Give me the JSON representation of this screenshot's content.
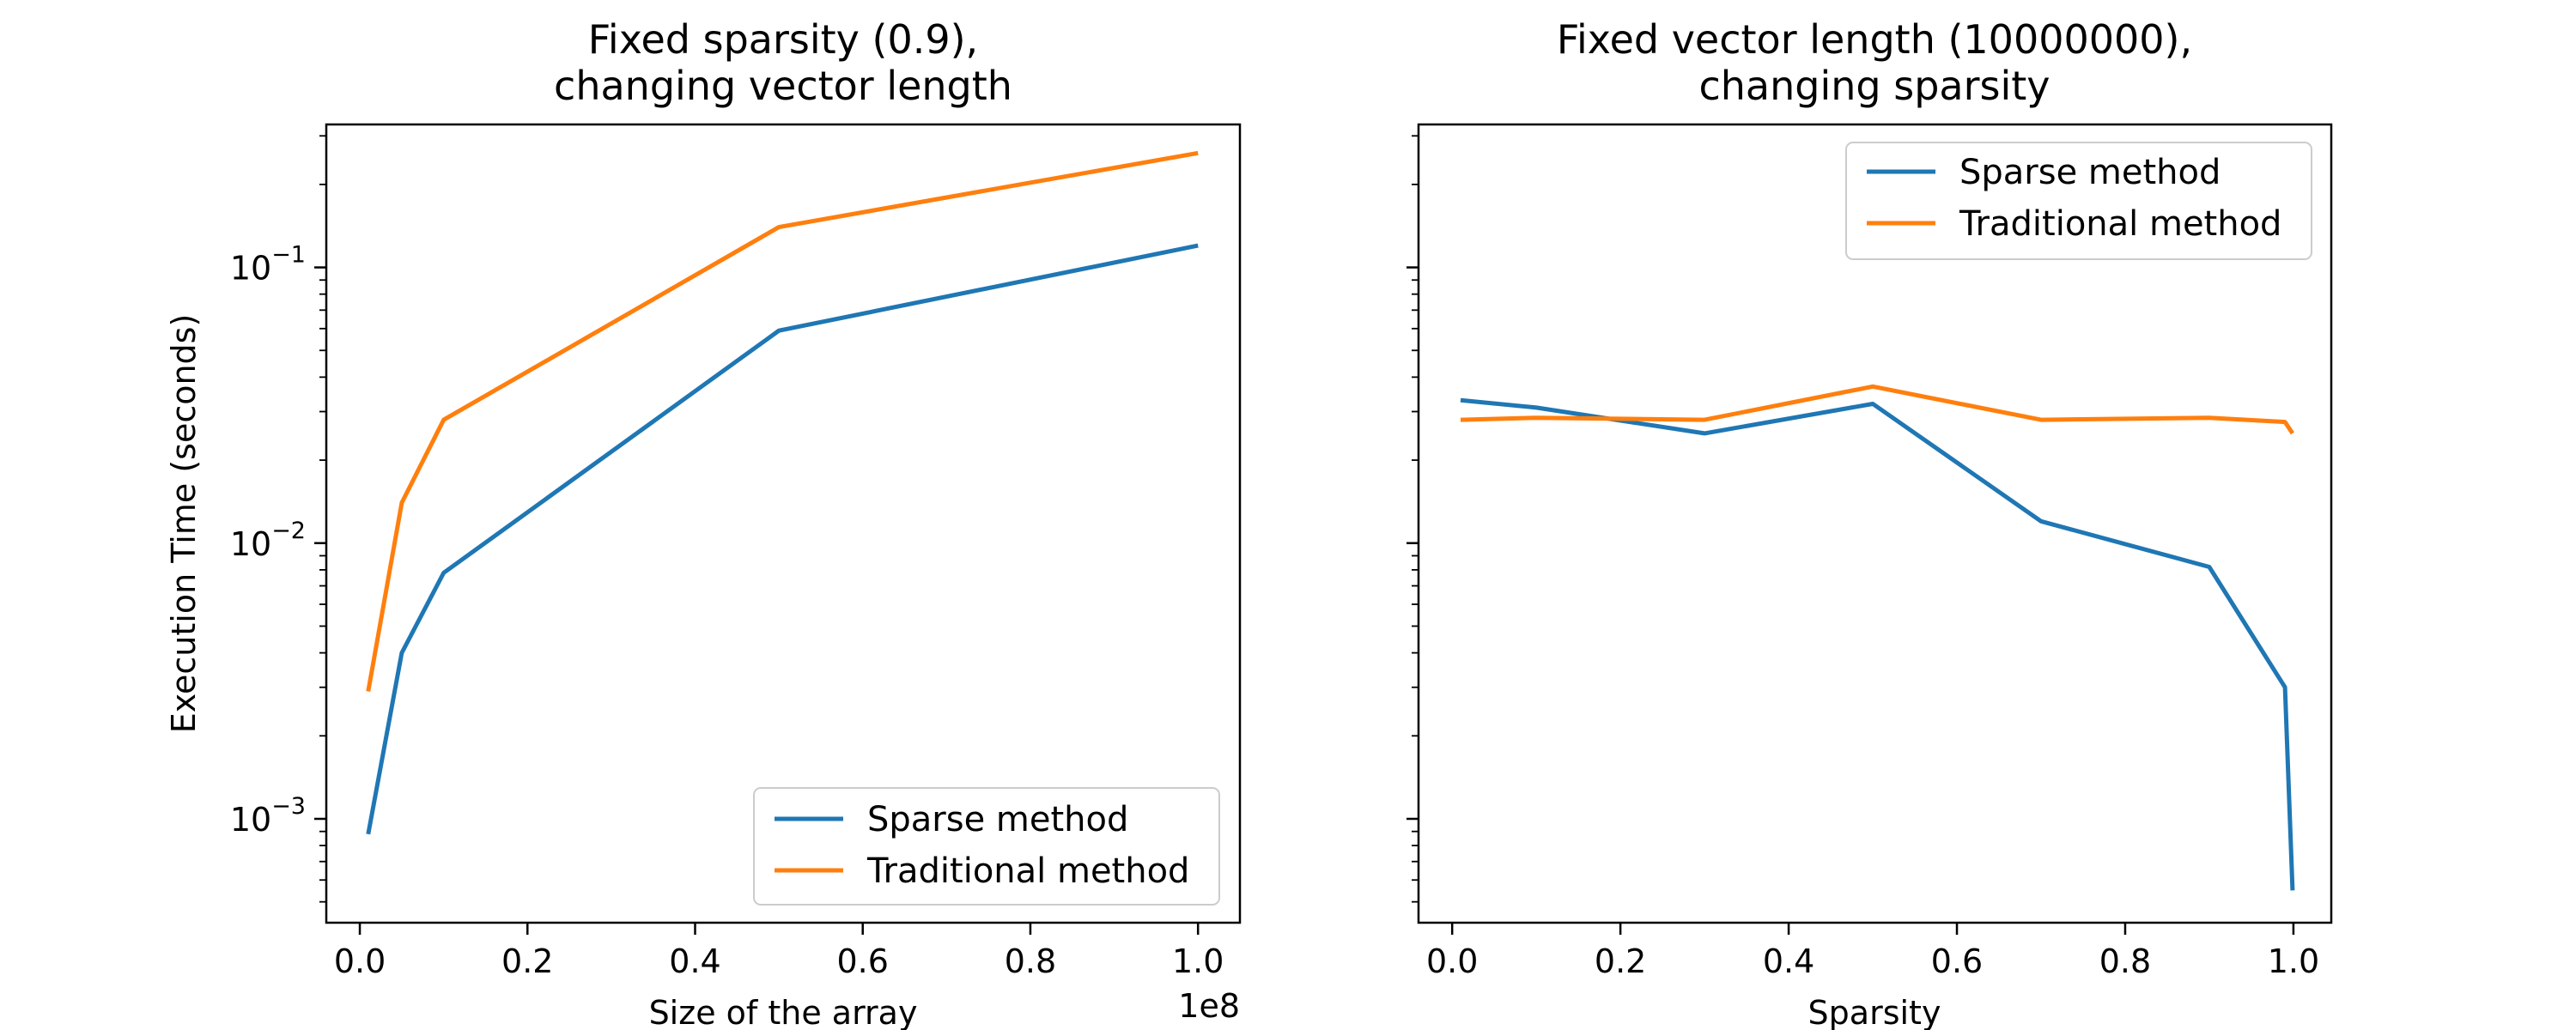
{
  "chart_data": [
    {
      "type": "line",
      "title_lines": [
        "Fixed sparsity (0.9),",
        "changing vector length"
      ],
      "xlabel": "Size of the array",
      "x_offset_label": "1e8",
      "ylabel": "Execution Time (seconds)",
      "yscale": "log",
      "xlim": [
        -0.04,
        1.05
      ],
      "ylim": [
        0.00042,
        0.33
      ],
      "xticks": [
        {
          "value": 0.0,
          "label": "0.0"
        },
        {
          "value": 0.2,
          "label": "0.2"
        },
        {
          "value": 0.4,
          "label": "0.4"
        },
        {
          "value": 0.6,
          "label": "0.6"
        },
        {
          "value": 0.8,
          "label": "0.8"
        },
        {
          "value": 1.0,
          "label": "1.0"
        }
      ],
      "yticks": [
        {
          "value": 0.001,
          "base": "10",
          "exp": "−3"
        },
        {
          "value": 0.01,
          "base": "10",
          "exp": "−2"
        },
        {
          "value": 0.1,
          "base": "10",
          "exp": "−1"
        }
      ],
      "x": [
        0.01,
        0.05,
        0.1,
        0.5,
        1.0
      ],
      "series": [
        {
          "name": "Sparse method",
          "color": "#1f77b4",
          "values": [
            0.00088,
            0.004,
            0.0078,
            0.059,
            0.12
          ]
        },
        {
          "name": "Traditional method",
          "color": "#ff7f0e",
          "values": [
            0.0029,
            0.014,
            0.028,
            0.14,
            0.26
          ]
        }
      ],
      "legend_loc": "lower right"
    },
    {
      "type": "line",
      "title_lines": [
        "Fixed vector length (10000000),",
        "changing sparsity"
      ],
      "xlabel": "Sparsity",
      "yscale": "log",
      "sharey": true,
      "xlim": [
        -0.04,
        1.045
      ],
      "ylim": [
        0.00042,
        0.33
      ],
      "xticks": [
        {
          "value": 0.0,
          "label": "0.0"
        },
        {
          "value": 0.2,
          "label": "0.2"
        },
        {
          "value": 0.4,
          "label": "0.4"
        },
        {
          "value": 0.6,
          "label": "0.6"
        },
        {
          "value": 0.8,
          "label": "0.8"
        },
        {
          "value": 1.0,
          "label": "1.0"
        }
      ],
      "x": [
        0.01,
        0.1,
        0.3,
        0.5,
        0.7,
        0.9,
        0.99,
        0.999
      ],
      "series": [
        {
          "name": "Sparse method",
          "color": "#1f77b4",
          "values": [
            0.033,
            0.031,
            0.025,
            0.032,
            0.012,
            0.0082,
            0.003,
            0.00055
          ]
        },
        {
          "name": "Traditional method",
          "color": "#ff7f0e",
          "values": [
            0.028,
            0.0285,
            0.028,
            0.037,
            0.028,
            0.0285,
            0.0275,
            0.025
          ]
        }
      ],
      "legend_loc": "upper right"
    }
  ]
}
